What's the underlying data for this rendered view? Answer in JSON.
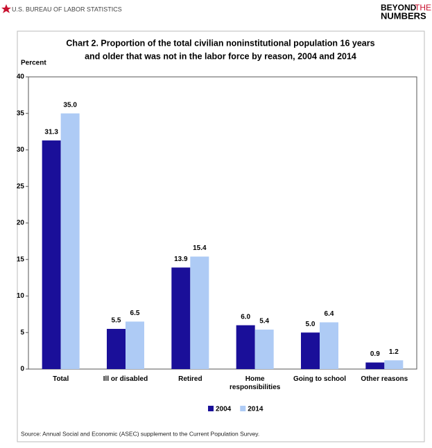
{
  "header": {
    "agency": "U.S. BUREAU OF LABOR STATISTICS",
    "brand": [
      "BEYOND",
      "THE",
      "NUMBERS"
    ]
  },
  "chart_data": {
    "type": "bar",
    "title": [
      "Chart 2.  Proportion of the total civilian noninstitutional population 16 years",
      "and older that was not in the labor force by reason, 2004 and 2014"
    ],
    "y_label": "Percent",
    "categories": [
      "Total",
      "Ill or disabled",
      "Retired",
      "Home responsibilities",
      "Going to school",
      "Other reasons"
    ],
    "series": [
      {
        "name": "2004",
        "color": "#1a0f99",
        "values": [
          31.3,
          5.5,
          13.9,
          6.0,
          5.0,
          0.9
        ],
        "value_labels": [
          "31.3",
          "5.5",
          "13.9",
          "6.0",
          "5.0",
          "0.9"
        ]
      },
      {
        "name": "2014",
        "color": "#aecbf5",
        "values": [
          35.0,
          6.5,
          15.4,
          5.4,
          6.4,
          1.2
        ],
        "value_labels": [
          "35.0",
          "6.5",
          "15.4",
          "5.4",
          "6.4",
          "1.2"
        ]
      }
    ],
    "ylim": [
      0,
      40
    ],
    "yticks": [
      0,
      5,
      10,
      15,
      20,
      25,
      30,
      35,
      40
    ],
    "grid": false,
    "legend": "bottom",
    "source": "Source: Annual Social and Economic (ASEC) supplement to the Current Population Survey."
  }
}
